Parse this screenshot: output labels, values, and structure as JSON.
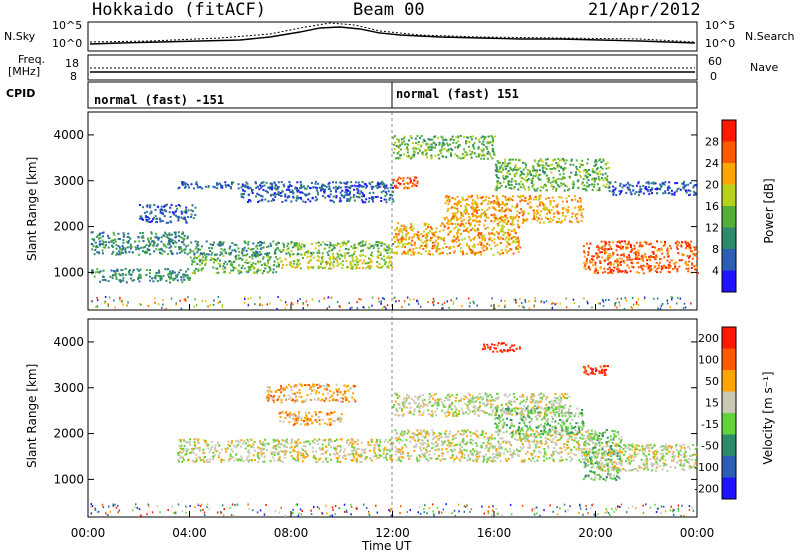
{
  "header": {
    "radar": "Hokkaido (fitACF)",
    "beam": "Beam 00",
    "date": "21/Apr/2012"
  },
  "nsky_panel": {
    "left_label": "N.Sky",
    "right_label": "N.Search",
    "tick_high": "10^5",
    "tick_low": "10^0"
  },
  "freq_panel": {
    "label_line1": "Freq.",
    "label_line2": "[MHz]",
    "tick_high": "18",
    "tick_low": "8",
    "right_label": "Nave",
    "right_tick_high": "60",
    "right_tick_low": "0"
  },
  "cpid": {
    "label": "CPID",
    "segments": [
      {
        "text": "normal (fast) -151"
      },
      {
        "text": "normal (fast) 151"
      }
    ]
  },
  "chart_data": [
    {
      "type": "heatmap",
      "name": "Power",
      "ylabel": "Slant Range [km]",
      "ylim": [
        180,
        4500
      ],
      "yticks": [
        "1000",
        "2000",
        "3000",
        "4000"
      ],
      "colorbar": {
        "label": "Power [dB]",
        "ticks": [
          "4",
          "8",
          "12",
          "16",
          "20",
          "24",
          "28"
        ],
        "colors": [
          "#1e14ff",
          "#2a5fb4",
          "#2e8a6a",
          "#52b03a",
          "#b8d21a",
          "#ffa500",
          "#ff5a00",
          "#ff1a00"
        ]
      },
      "regions": [
        {
          "x": [
            0.1,
            4.0
          ],
          "y": [
            800,
            1100
          ],
          "level": 2
        },
        {
          "x": [
            0.1,
            4.0
          ],
          "y": [
            1400,
            1900
          ],
          "level": 2
        },
        {
          "x": [
            2.0,
            4.2
          ],
          "y": [
            2100,
            2500
          ],
          "level": 1
        },
        {
          "x": [
            4.0,
            7.5
          ],
          "y": [
            1000,
            1400
          ],
          "level": 3
        },
        {
          "x": [
            4.0,
            7.5
          ],
          "y": [
            1400,
            1700
          ],
          "level": 2
        },
        {
          "x": [
            7.5,
            12.0
          ],
          "y": [
            1100,
            1400
          ],
          "level": 4
        },
        {
          "x": [
            7.5,
            12.0
          ],
          "y": [
            1400,
            1700
          ],
          "level": 3
        },
        {
          "x": [
            6.0,
            12.0
          ],
          "y": [
            2550,
            2900
          ],
          "level": 1
        },
        {
          "x": [
            3.5,
            12.0
          ],
          "y": [
            2850,
            3000
          ],
          "level": 1
        },
        {
          "x": [
            12.0,
            13.0
          ],
          "y": [
            2850,
            3100
          ],
          "level": 6
        },
        {
          "x": [
            12.0,
            17.0
          ],
          "y": [
            1400,
            2100
          ],
          "level": 5
        },
        {
          "x": [
            14.0,
            19.5
          ],
          "y": [
            2100,
            2700
          ],
          "level": 5
        },
        {
          "x": [
            12.0,
            16.0
          ],
          "y": [
            3500,
            4000
          ],
          "level": 3
        },
        {
          "x": [
            16.0,
            20.5
          ],
          "y": [
            2800,
            3500
          ],
          "level": 3
        },
        {
          "x": [
            19.5,
            24.0
          ],
          "y": [
            1000,
            1700
          ],
          "level": 6
        },
        {
          "x": [
            20.5,
            24.0
          ],
          "y": [
            2700,
            3000
          ],
          "level": 1
        }
      ]
    },
    {
      "type": "heatmap",
      "name": "Velocity",
      "xlabel": "Time UT",
      "ylabel": "Slant Range [km]",
      "xlim": [
        0,
        24
      ],
      "ylim": [
        180,
        4500
      ],
      "xticks": [
        "00:00",
        "04:00",
        "08:00",
        "12:00",
        "16:00",
        "20:00",
        "00:00"
      ],
      "yticks": [
        "1000",
        "2000",
        "3000",
        "4000"
      ],
      "colorbar": {
        "label": "Velocity [m s⁻¹]",
        "ticks": [
          "200",
          "100",
          "50",
          "15",
          "-15",
          "-50",
          "-100",
          "-200"
        ],
        "colors": [
          "#1e14ff",
          "#2a5fb4",
          "#2e8a6a",
          "#64d23c",
          "#c8c8b4",
          "#ffa500",
          "#ff5a00",
          "#ff1a00"
        ]
      },
      "regions": [
        {
          "x": [
            3.5,
            12.0
          ],
          "y": [
            1400,
            1900
          ],
          "level": 4
        },
        {
          "x": [
            7.0,
            10.5
          ],
          "y": [
            2700,
            3100
          ],
          "level": 5
        },
        {
          "x": [
            7.5,
            10.0
          ],
          "y": [
            2200,
            2500
          ],
          "level": 5
        },
        {
          "x": [
            12.0,
            20.0
          ],
          "y": [
            1400,
            2100
          ],
          "level": 4
        },
        {
          "x": [
            12.0,
            19.0
          ],
          "y": [
            2400,
            2900
          ],
          "level": 4
        },
        {
          "x": [
            16.0,
            19.5
          ],
          "y": [
            2000,
            2600
          ],
          "level": 3
        },
        {
          "x": [
            19.5,
            21.0
          ],
          "y": [
            1000,
            2100
          ],
          "level": 3
        },
        {
          "x": [
            15.5,
            17.0
          ],
          "y": [
            3800,
            4000
          ],
          "level": 7
        },
        {
          "x": [
            19.5,
            20.5
          ],
          "y": [
            3300,
            3500
          ],
          "level": 7
        },
        {
          "x": [
            20.0,
            24.0
          ],
          "y": [
            1200,
            1800
          ],
          "level": 4
        }
      ]
    }
  ]
}
